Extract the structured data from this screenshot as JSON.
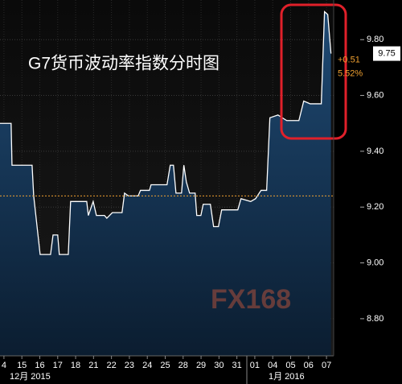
{
  "chart_data": {
    "type": "line",
    "title": "G7货币波动率指数分时图",
    "watermark": "FX168",
    "series": [
      {
        "name": "G7",
        "color": "#ffffff",
        "x": [
          -0.22,
          0.4,
          0.45,
          1.57,
          1.66,
          2.02,
          2.6,
          2.74,
          3.0,
          3.09,
          3.59,
          3.72,
          4.62,
          4.71,
          4.98,
          5.16,
          5.61,
          5.74,
          6.05,
          6.59,
          6.73,
          6.95,
          7.49,
          7.62,
          8.12,
          8.21,
          9.1,
          9.28,
          9.46,
          9.6,
          9.91,
          10.04,
          10.18,
          10.36,
          10.67,
          10.76,
          10.99,
          11.12,
          11.52,
          11.7,
          11.97,
          12.15,
          13.05,
          13.23,
          13.77,
          14.04,
          14.35,
          14.66,
          14.84,
          15.29,
          15.78,
          16.46,
          16.73,
          17.09,
          17.71,
          17.89,
          18.07,
          18.25
        ],
        "values": [
          9.5,
          9.5,
          9.35,
          9.35,
          9.24,
          9.03,
          9.03,
          9.1,
          9.1,
          9.03,
          9.03,
          9.22,
          9.22,
          9.17,
          9.22,
          9.17,
          9.17,
          9.16,
          9.18,
          9.18,
          9.25,
          9.24,
          9.24,
          9.26,
          9.26,
          9.28,
          9.28,
          9.35,
          9.35,
          9.25,
          9.25,
          9.35,
          9.29,
          9.25,
          9.25,
          9.17,
          9.17,
          9.21,
          9.21,
          9.13,
          9.13,
          9.19,
          9.19,
          9.23,
          9.22,
          9.23,
          9.26,
          9.26,
          9.52,
          9.53,
          9.51,
          9.51,
          9.58,
          9.57,
          9.57,
          9.9,
          9.89,
          9.75
        ]
      }
    ],
    "xlim": [
      -0.22,
      18.4
    ],
    "xticks": [
      {
        "value": 0,
        "label": "4"
      },
      {
        "value": 1,
        "label": "15"
      },
      {
        "value": 2,
        "label": "16"
      },
      {
        "value": 3,
        "label": "17"
      },
      {
        "value": 4,
        "label": "18"
      },
      {
        "value": 5,
        "label": "21"
      },
      {
        "value": 6,
        "label": "22"
      },
      {
        "value": 7,
        "label": "23"
      },
      {
        "value": 8,
        "label": "24"
      },
      {
        "value": 9,
        "label": "25"
      },
      {
        "value": 10,
        "label": "28"
      },
      {
        "value": 11,
        "label": "29"
      },
      {
        "value": 12,
        "label": "30"
      },
      {
        "value": 13,
        "label": "31"
      },
      {
        "value": 14,
        "label": "01"
      },
      {
        "value": 15,
        "label": "04"
      },
      {
        "value": 16,
        "label": "05"
      },
      {
        "value": 17,
        "label": "06"
      },
      {
        "value": 18,
        "label": "07"
      }
    ],
    "month_labels": [
      "12月 2015",
      "1月 2016"
    ],
    "ylim": [
      8.667,
      9.942
    ],
    "yticks": [
      {
        "value": 8.8,
        "label": "8.80"
      },
      {
        "value": 9.0,
        "label": "9.00"
      },
      {
        "value": 9.2,
        "label": "9.20"
      },
      {
        "value": 9.4,
        "label": "9.40"
      },
      {
        "value": 9.6,
        "label": "9.60"
      },
      {
        "value": 9.8,
        "label": "9.80"
      }
    ],
    "reference_line": 9.24,
    "last_price": 9.75,
    "change_labels": [
      "+0.51",
      "5.52%"
    ],
    "grid": true
  }
}
